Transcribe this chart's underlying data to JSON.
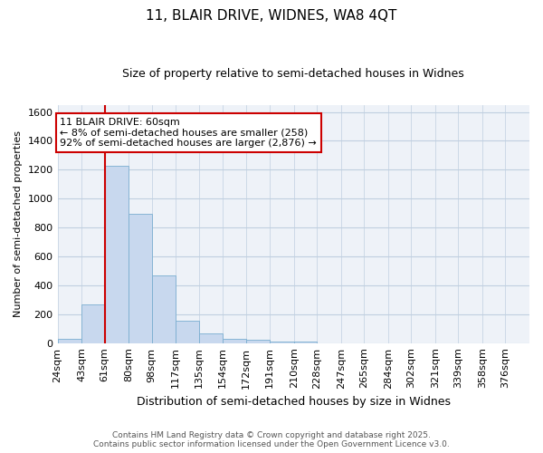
{
  "title1": "11, BLAIR DRIVE, WIDNES, WA8 4QT",
  "title2": "Size of property relative to semi-detached houses in Widnes",
  "xlabel": "Distribution of semi-detached houses by size in Widnes",
  "ylabel": "Number of semi-detached properties",
  "footer1": "Contains HM Land Registry data © Crown copyright and database right 2025.",
  "footer2": "Contains public sector information licensed under the Open Government Licence v3.0.",
  "annotation_title": "11 BLAIR DRIVE: 60sqm",
  "annotation_line1": "← 8% of semi-detached houses are smaller (258)",
  "annotation_line2": "92% of semi-detached houses are larger (2,876) →",
  "property_line_x": 61,
  "bar_edges": [
    24,
    43,
    61,
    80,
    98,
    117,
    135,
    154,
    172,
    191,
    210,
    228,
    247,
    265,
    284,
    302,
    321,
    339,
    358,
    376,
    395
  ],
  "bar_heights": [
    28,
    265,
    1230,
    895,
    470,
    155,
    68,
    30,
    20,
    10,
    8,
    0,
    0,
    0,
    0,
    0,
    0,
    0,
    0,
    0
  ],
  "bar_color": "#c8d8ee",
  "bar_edge_color": "#7aaed0",
  "vline_color": "#cc0000",
  "annotation_box_edgecolor": "#cc0000",
  "grid_color": "#c0cfe0",
  "background_color": "#eef2f8",
  "ylim": [
    0,
    1650
  ],
  "yticks": [
    0,
    200,
    400,
    600,
    800,
    1000,
    1200,
    1400,
    1600
  ],
  "tick_label_fontsize": 8,
  "title1_fontsize": 11,
  "title2_fontsize": 9,
  "xlabel_fontsize": 9,
  "ylabel_fontsize": 8,
  "footer_fontsize": 6.5,
  "annotation_fontsize": 8
}
